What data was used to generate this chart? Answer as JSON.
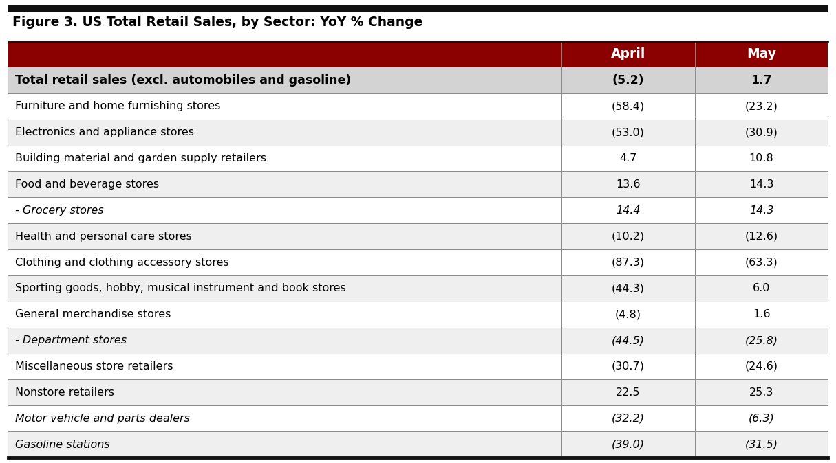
{
  "title": "Figure 3. US Total Retail Sales, by Sector: YoY % Change",
  "header_bg_color": "#8B0000",
  "header_text_color": "#FFFFFF",
  "header_cols": [
    "April",
    "May"
  ],
  "rows": [
    {
      "label": "Total retail sales (excl. automobiles and gasoline)",
      "april": "(5.2)",
      "may": "1.7",
      "bold": true,
      "italic": false,
      "bg": "#D3D3D3"
    },
    {
      "label": "Furniture and home furnishing stores",
      "april": "(58.4)",
      "may": "(23.2)",
      "bold": false,
      "italic": false,
      "bg": "#FFFFFF"
    },
    {
      "label": "Electronics and appliance stores",
      "april": "(53.0)",
      "may": "(30.9)",
      "bold": false,
      "italic": false,
      "bg": "#EFEFEF"
    },
    {
      "label": "Building material and garden supply retailers",
      "april": "4.7",
      "may": "10.8",
      "bold": false,
      "italic": false,
      "bg": "#FFFFFF"
    },
    {
      "label": "Food and beverage stores",
      "april": "13.6",
      "may": "14.3",
      "bold": false,
      "italic": false,
      "bg": "#EFEFEF"
    },
    {
      "label": "- Grocery stores",
      "april": "14.4",
      "may": "14.3",
      "bold": false,
      "italic": true,
      "bg": "#FFFFFF"
    },
    {
      "label": "Health and personal care stores",
      "april": "(10.2)",
      "may": "(12.6)",
      "bold": false,
      "italic": false,
      "bg": "#EFEFEF"
    },
    {
      "label": "Clothing and clothing accessory stores",
      "april": "(87.3)",
      "may": "(63.3)",
      "bold": false,
      "italic": false,
      "bg": "#FFFFFF"
    },
    {
      "label": "Sporting goods, hobby, musical instrument and book stores",
      "april": "(44.3)",
      "may": "6.0",
      "bold": false,
      "italic": false,
      "bg": "#EFEFEF"
    },
    {
      "label": "General merchandise stores",
      "april": "(4.8)",
      "may": "1.6",
      "bold": false,
      "italic": false,
      "bg": "#FFFFFF"
    },
    {
      "label": "- Department stores",
      "april": "(44.5)",
      "may": "(25.8)",
      "bold": false,
      "italic": true,
      "bg": "#EFEFEF"
    },
    {
      "label": "Miscellaneous store retailers",
      "april": "(30.7)",
      "may": "(24.6)",
      "bold": false,
      "italic": false,
      "bg": "#FFFFFF"
    },
    {
      "label": "Nonstore retailers",
      "april": "22.5",
      "may": "25.3",
      "bold": false,
      "italic": false,
      "bg": "#EFEFEF"
    },
    {
      "label": "Motor vehicle and parts dealers",
      "april": "(32.2)",
      "may": "(6.3)",
      "bold": false,
      "italic": true,
      "bg": "#FFFFFF"
    },
    {
      "label": "Gasoline stations",
      "april": "(39.0)",
      "may": "(31.5)",
      "bold": false,
      "italic": true,
      "bg": "#EFEFEF"
    }
  ],
  "fig_width": 12.15,
  "fig_height": 6.74,
  "dpi": 100
}
